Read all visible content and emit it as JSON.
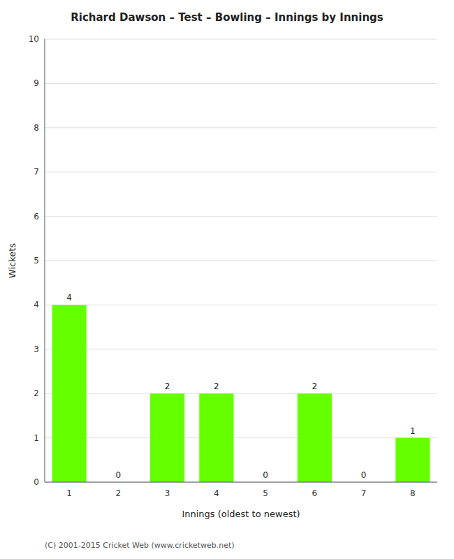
{
  "chart_data": {
    "type": "bar",
    "title": "Richard Dawson – Test – Bowling – Innings by Innings",
    "x_label": "Innings (oldest to newest)",
    "y_label": "Wickets",
    "categories": [
      "1",
      "2",
      "3",
      "4",
      "5",
      "6",
      "7",
      "8"
    ],
    "values": [
      4,
      0,
      2,
      2,
      0,
      2,
      0,
      1
    ],
    "color": "#66ff00",
    "ylim": [
      0,
      10
    ],
    "yticks": [
      0,
      1,
      2,
      3,
      4,
      5,
      6,
      7,
      8,
      9,
      10
    ],
    "grid": true,
    "data_labels": true,
    "annotations": [
      "(C) 2001-2015 Cricket Web (www.cricketweb.net)"
    ]
  }
}
